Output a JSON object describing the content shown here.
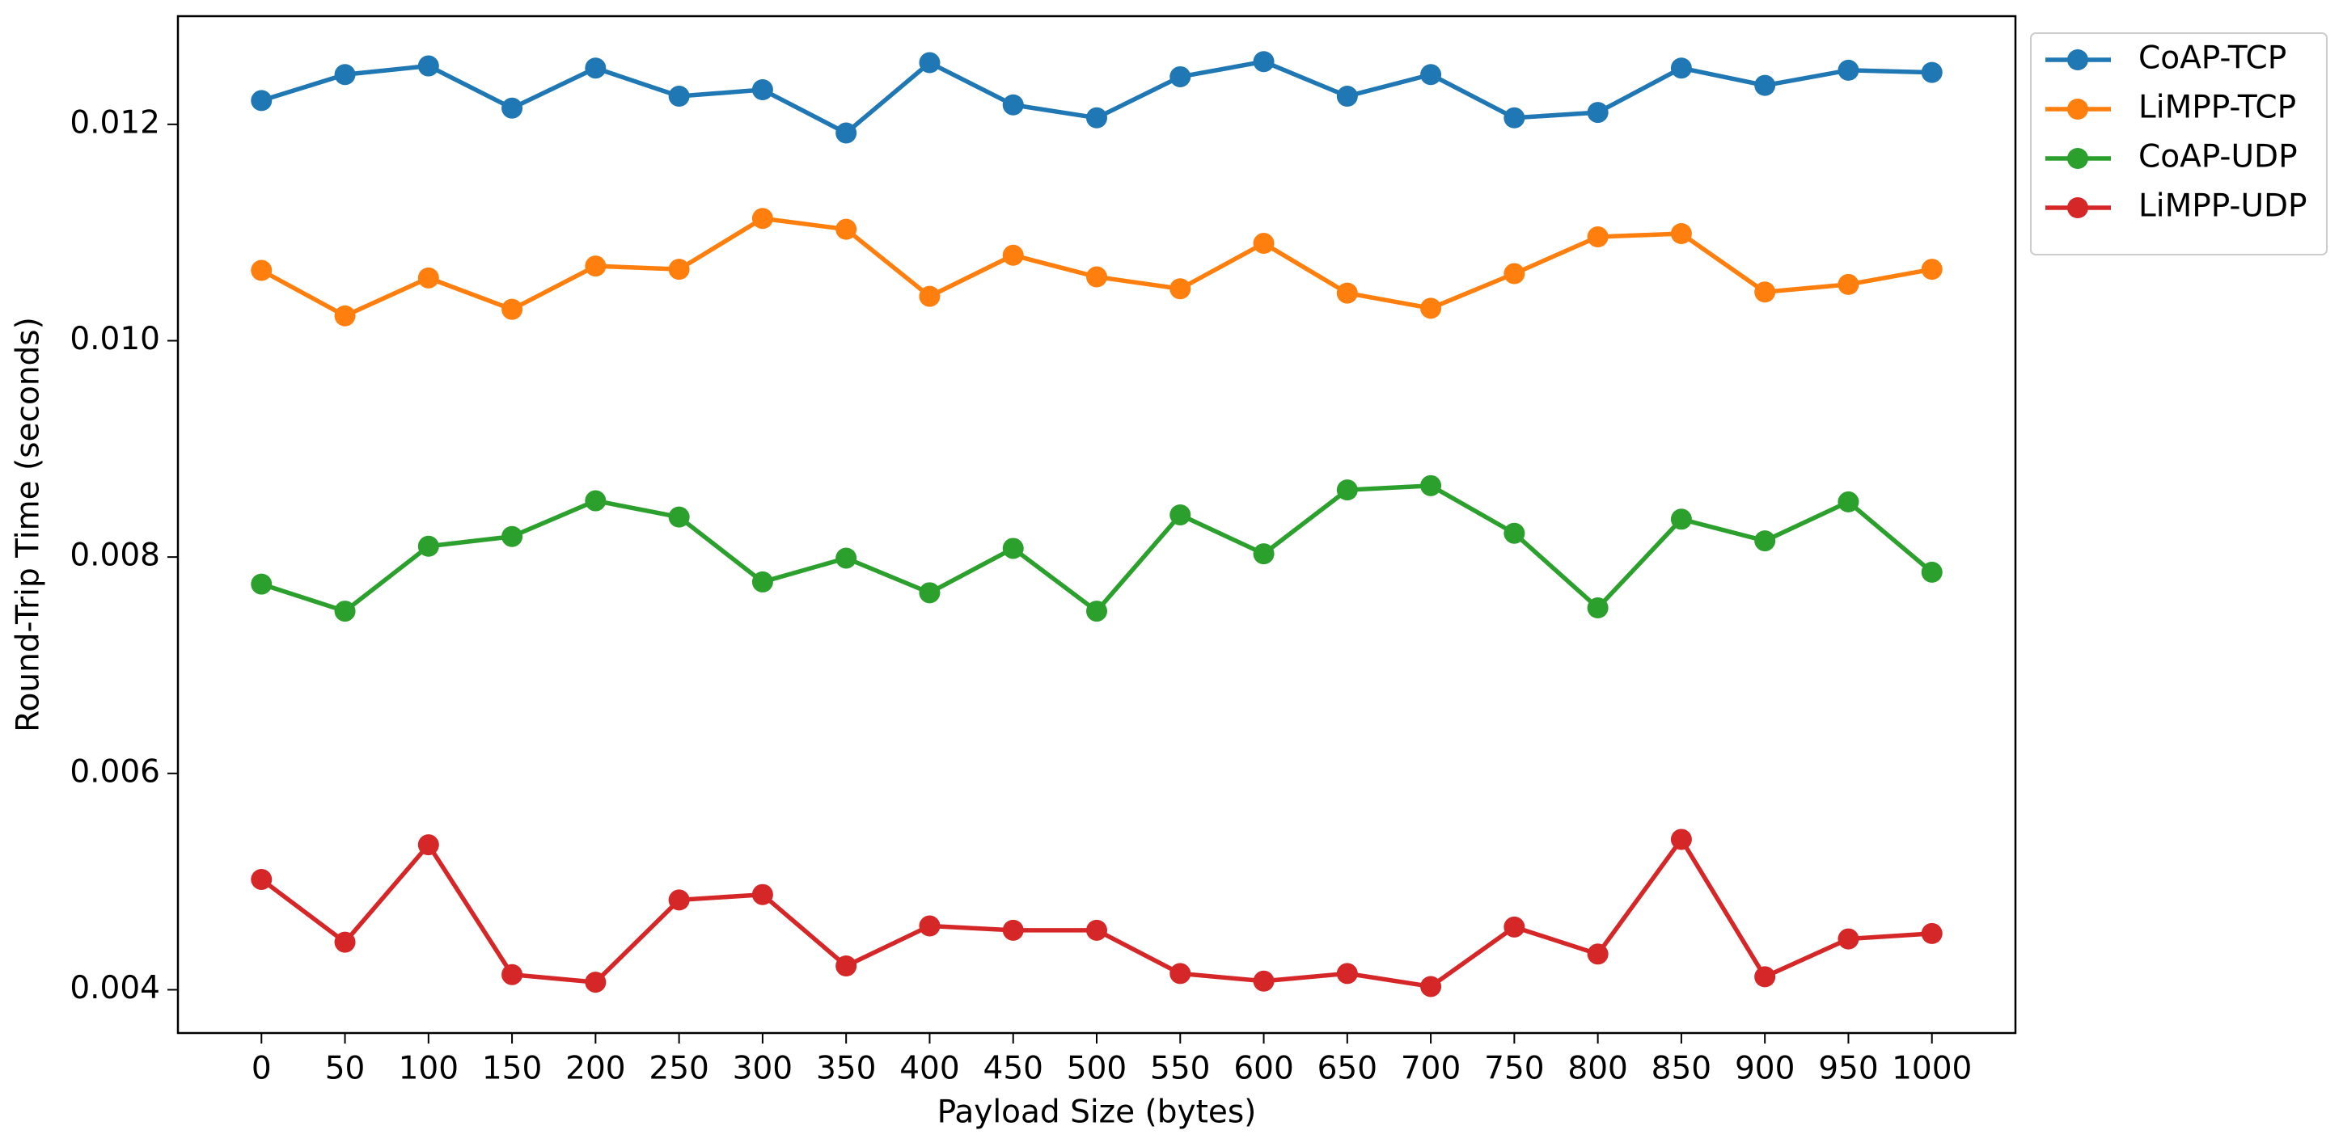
{
  "chart_data": {
    "type": "line",
    "xlabel": "Payload Size (bytes)",
    "ylabel": "Round-Trip Time (seconds)",
    "x": [
      0,
      50,
      100,
      150,
      200,
      250,
      300,
      350,
      400,
      450,
      500,
      550,
      600,
      650,
      700,
      750,
      800,
      850,
      900,
      950,
      1000
    ],
    "xlim": [
      -50,
      1050
    ],
    "xticks": [
      0,
      50,
      100,
      150,
      200,
      250,
      300,
      350,
      400,
      450,
      500,
      550,
      600,
      650,
      700,
      750,
      800,
      850,
      900,
      950,
      1000
    ],
    "ylim": [
      0.0036,
      0.013
    ],
    "yticks": [
      0.004,
      0.006,
      0.008,
      {
        "value": 0.01,
        "label": "0.010"
      },
      0.012
    ],
    "legend": "outside-upper-right",
    "series": [
      {
        "name": "CoAP-TCP",
        "color": "#1f77b4",
        "values": [
          0.01222,
          0.01246,
          0.01254,
          0.01215,
          0.01252,
          0.01226,
          0.01232,
          0.01192,
          0.01257,
          0.01218,
          0.01206,
          0.01244,
          0.01258,
          0.01226,
          0.01246,
          0.01206,
          0.01211,
          0.01252,
          0.01236,
          0.0125,
          0.01248
        ]
      },
      {
        "name": "LiMPP-TCP",
        "color": "#ff7f0e",
        "values": [
          0.01065,
          0.01023,
          0.01058,
          0.01029,
          0.01069,
          0.01066,
          0.01113,
          0.01103,
          0.01041,
          0.01079,
          0.01059,
          0.01048,
          0.0109,
          0.01044,
          0.0103,
          0.01062,
          0.01096,
          0.01099,
          0.01045,
          0.01052,
          0.01066
        ]
      },
      {
        "name": "CoAP-UDP",
        "color": "#2ca02c",
        "values": [
          0.00775,
          0.0075,
          0.0081,
          0.00819,
          0.00852,
          0.00837,
          0.00777,
          0.00799,
          0.00767,
          0.00808,
          0.0075,
          0.00839,
          0.00803,
          0.00862,
          0.00866,
          0.00822,
          0.00753,
          0.00835,
          0.00815,
          0.00851,
          0.00786
        ]
      },
      {
        "name": "LiMPP-UDP",
        "color": "#d62728",
        "values": [
          0.00502,
          0.00444,
          0.00534,
          0.00414,
          0.00407,
          0.00483,
          0.00488,
          0.00422,
          0.00459,
          0.00455,
          0.00455,
          0.00415,
          0.00408,
          0.00415,
          0.00403,
          0.00458,
          0.00433,
          0.00539,
          0.00412,
          0.00447,
          0.00452
        ]
      }
    ]
  }
}
